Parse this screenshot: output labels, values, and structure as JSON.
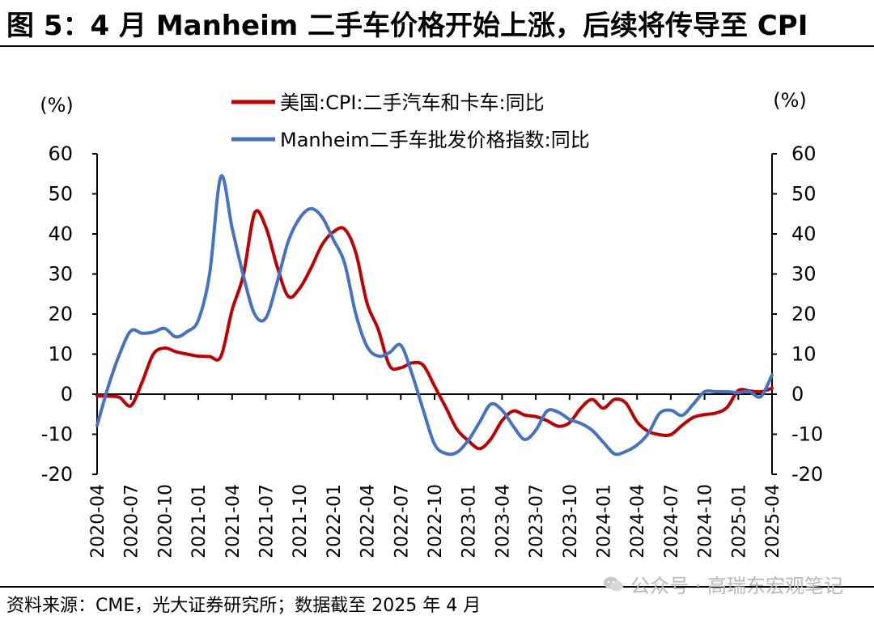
{
  "header": {
    "title": "图 5：4 月 Manheim 二手车价格开始上涨，后续将传导至 CPI"
  },
  "footer": {
    "source": "资料来源：CME，光大证券研究所；数据截至 2025 年 4 月",
    "watermark": "公众号 · 高瑞东宏观笔记",
    "watermark_icon": "wechat-icon"
  },
  "chart_data": {
    "type": "line",
    "left_unit": "(%)",
    "right_unit": "(%)",
    "ylim": [
      -20,
      60
    ],
    "yticks": [
      -20,
      -10,
      0,
      10,
      20,
      30,
      40,
      50,
      60
    ],
    "grid": false,
    "legend_position": "top-center",
    "x": [
      "2020-04",
      "2020-05",
      "2020-06",
      "2020-07",
      "2020-08",
      "2020-09",
      "2020-10",
      "2020-11",
      "2020-12",
      "2021-01",
      "2021-02",
      "2021-03",
      "2021-04",
      "2021-05",
      "2021-06",
      "2021-07",
      "2021-08",
      "2021-09",
      "2021-10",
      "2021-11",
      "2021-12",
      "2022-01",
      "2022-02",
      "2022-03",
      "2022-04",
      "2022-05",
      "2022-06",
      "2022-07",
      "2022-08",
      "2022-09",
      "2022-10",
      "2022-11",
      "2022-12",
      "2023-01",
      "2023-02",
      "2023-03",
      "2023-04",
      "2023-05",
      "2023-06",
      "2023-07",
      "2023-08",
      "2023-09",
      "2023-10",
      "2023-11",
      "2023-12",
      "2024-01",
      "2024-02",
      "2024-03",
      "2024-04",
      "2024-05",
      "2024-06",
      "2024-07",
      "2024-08",
      "2024-09",
      "2024-10",
      "2024-11",
      "2024-12",
      "2025-01",
      "2025-02",
      "2025-03",
      "2025-04"
    ],
    "xtick_labels": [
      "2020-04",
      "2020-07",
      "2020-10",
      "2021-01",
      "2021-04",
      "2021-07",
      "2021-10",
      "2022-01",
      "2022-04",
      "2022-07",
      "2022-10",
      "2023-01",
      "2023-04",
      "2023-07",
      "2023-10",
      "2024-01",
      "2024-04",
      "2024-07",
      "2024-10",
      "2025-01",
      "2025-04"
    ],
    "series": [
      {
        "name": "美国:CPI:二手汽车和卡车:同比",
        "color": "#C00000",
        "values": [
          -0.4,
          -0.5,
          -0.8,
          -2.9,
          3.0,
          10.0,
          11.5,
          10.6,
          10.0,
          9.5,
          9.4,
          9.4,
          21.0,
          29.7,
          45.2,
          41.7,
          31.9,
          24.4,
          26.4,
          31.4,
          37.3,
          40.5,
          41.2,
          35.3,
          22.7,
          16.1,
          7.1,
          6.6,
          7.8,
          7.2,
          2.0,
          -3.3,
          -8.8,
          -11.6,
          -13.6,
          -11.2,
          -6.6,
          -4.2,
          -5.2,
          -5.6,
          -6.6,
          -8.0,
          -7.1,
          -3.5,
          -1.3,
          -3.5,
          -1.3,
          -2.2,
          -6.9,
          -9.3,
          -10.1,
          -10.1,
          -7.8,
          -5.8,
          -5.1,
          -4.7,
          -3.3,
          0.9,
          0.8,
          0.6,
          1.5
        ]
      },
      {
        "name": "Manheim二手车批发价格指数:同比",
        "color": "#4472C4",
        "values": [
          -7.8,
          2.0,
          10.0,
          15.8,
          15.2,
          15.5,
          16.4,
          14.3,
          15.6,
          18.5,
          30.0,
          54.3,
          41.5,
          29.6,
          20.0,
          19.0,
          27.9,
          38.2,
          43.9,
          46.3,
          44.2,
          38.6,
          32.7,
          20.0,
          11.9,
          9.5,
          10.4,
          12.2,
          5.0,
          -4.0,
          -12.5,
          -14.8,
          -14.5,
          -11.5,
          -7.0,
          -2.5,
          -4.0,
          -8.0,
          -11.3,
          -9.0,
          -4.2,
          -4.5,
          -6.3,
          -7.3,
          -9.0,
          -12.0,
          -14.9,
          -14.3,
          -12.7,
          -9.8,
          -4.8,
          -4.0,
          -5.3,
          -2.5,
          0.6,
          0.6,
          0.6,
          0.4,
          0.6,
          -0.6,
          4.8
        ]
      }
    ]
  }
}
